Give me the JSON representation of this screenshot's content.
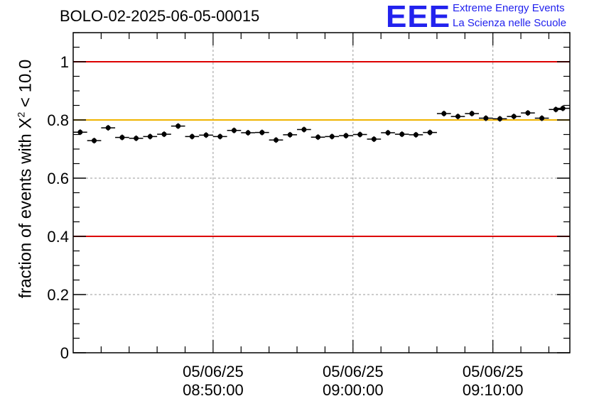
{
  "title": "BOLO-02-2025-06-05-00015",
  "logo": {
    "mark": "EEE",
    "line1": "Extreme Energy Events",
    "line2": "La Scienza nelle Scuole"
  },
  "colors": {
    "threshold_red": "#dd0000",
    "threshold_yellow": "#f0b400",
    "grid": "#9a9a9a",
    "points": "#000000",
    "logo": "#2222ee"
  },
  "chart_data": {
    "type": "scatter",
    "ylabel": {
      "prefix": "fraction of events with X",
      "sup": "2",
      "suffix": " < 10.0"
    },
    "ylim": [
      0,
      1.1
    ],
    "y_ticks": [
      "0",
      "0.2",
      "0.4",
      "0.6",
      "0.8",
      "1"
    ],
    "x_range": [
      "08:40:00",
      "09:15:30"
    ],
    "x_ticks": [
      {
        "time": "08:50:00",
        "date": "05/06/25",
        "label": "08:50:00"
      },
      {
        "time": "09:00:00",
        "date": "05/06/25",
        "label": "09:00:00"
      },
      {
        "time": "09:10:00",
        "date": "05/06/25",
        "label": "09:10:00"
      }
    ],
    "grid": true,
    "reference_lines": [
      {
        "y": 1.0,
        "color": "red"
      },
      {
        "y": 0.8,
        "color": "yellow"
      },
      {
        "y": 0.4,
        "color": "red"
      }
    ],
    "series": [
      {
        "marker": "circle",
        "x": [
          "08:40:30",
          "08:41:30",
          "08:42:30",
          "08:43:30",
          "08:44:30",
          "08:45:30",
          "08:46:30",
          "08:47:30",
          "08:48:30",
          "08:49:30",
          "08:50:30",
          "08:51:30",
          "08:52:30",
          "08:53:30",
          "08:54:30",
          "08:55:30",
          "08:56:30",
          "08:57:30",
          "08:58:30",
          "08:59:30",
          "09:00:30",
          "09:01:30",
          "09:02:30",
          "09:03:30",
          "09:04:30",
          "09:05:30",
          "09:06:30",
          "09:07:30",
          "09:08:30",
          "09:09:30",
          "09:10:30",
          "09:11:30",
          "09:12:30",
          "09:13:30",
          "09:14:30",
          "09:15:00"
        ],
        "y": [
          0.758,
          0.729,
          0.773,
          0.74,
          0.737,
          0.743,
          0.751,
          0.779,
          0.743,
          0.748,
          0.743,
          0.764,
          0.756,
          0.757,
          0.731,
          0.749,
          0.767,
          0.741,
          0.743,
          0.746,
          0.75,
          0.734,
          0.756,
          0.751,
          0.749,
          0.757,
          0.822,
          0.812,
          0.822,
          0.806,
          0.804,
          0.812,
          0.824,
          0.806,
          0.836,
          0.84
        ]
      }
    ]
  }
}
